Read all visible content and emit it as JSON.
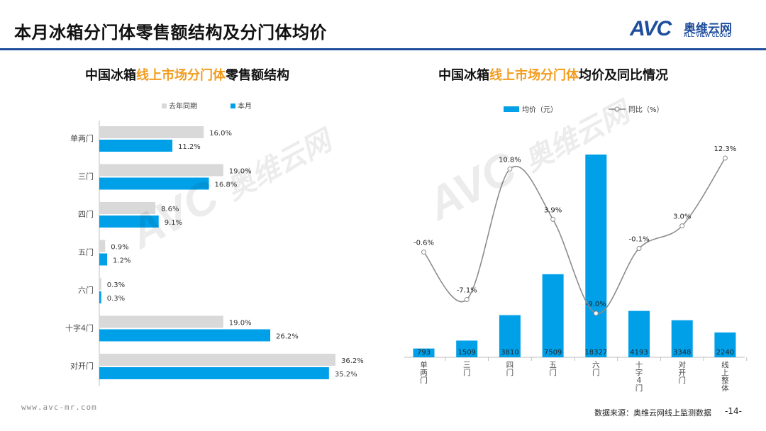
{
  "header": {
    "title": "本月冰箱分门体零售额结构及分门体均价"
  },
  "logo": {
    "mark": "AVC",
    "name_cn": "奥维云网",
    "name_en": "ALL VIEW CLOUD"
  },
  "watermark": {
    "mark": "AVC",
    "name_cn": "奥维云网",
    "name_en": "ALL VIEW CLOUD"
  },
  "left_chart_title": {
    "prefix": "中国冰箱",
    "highlight": "线上市场分门体",
    "suffix": "零售额结构"
  },
  "right_chart_title": {
    "prefix": "中国冰箱",
    "highlight": "线上市场分门体",
    "suffix": "均价及同比情况"
  },
  "colors": {
    "last_year": "#d9d9d9",
    "this_month": "#00a0e9",
    "line": "#8c8c8c",
    "highlight": "#f29c1f",
    "brand": "#1f4e9c"
  },
  "chart_data": [
    {
      "type": "bar",
      "orientation": "horizontal",
      "categories": [
        "单两门",
        "三门",
        "四门",
        "五门",
        "六门",
        "十字4门",
        "对开门"
      ],
      "series": [
        {
          "name": "去年同期",
          "values": [
            16.0,
            19.0,
            8.6,
            0.9,
            0.3,
            19.0,
            36.2
          ]
        },
        {
          "name": "本月",
          "values": [
            11.2,
            16.8,
            9.1,
            1.2,
            0.3,
            26.2,
            35.2
          ]
        }
      ],
      "unit": "%",
      "legend": "top"
    },
    {
      "type": "bar+line",
      "categories": [
        "单两门",
        "三门",
        "四门",
        "五门",
        "六门",
        "十字4门",
        "对开门",
        "线上整体"
      ],
      "series": [
        {
          "name": "均价（元）",
          "type": "bar",
          "values": [
            793,
            1509,
            3810,
            7509,
            18327,
            4193,
            3348,
            2240
          ]
        },
        {
          "name": "同比（%）",
          "type": "line",
          "values": [
            -0.6,
            -7.1,
            10.8,
            3.9,
            -9.0,
            -0.1,
            3.0,
            12.3
          ]
        }
      ],
      "legend": "top"
    }
  ],
  "footer": {
    "url": "www.avc-mr.com",
    "source": "数据来源：奥维云网线上监测数据",
    "page": "-14-"
  }
}
